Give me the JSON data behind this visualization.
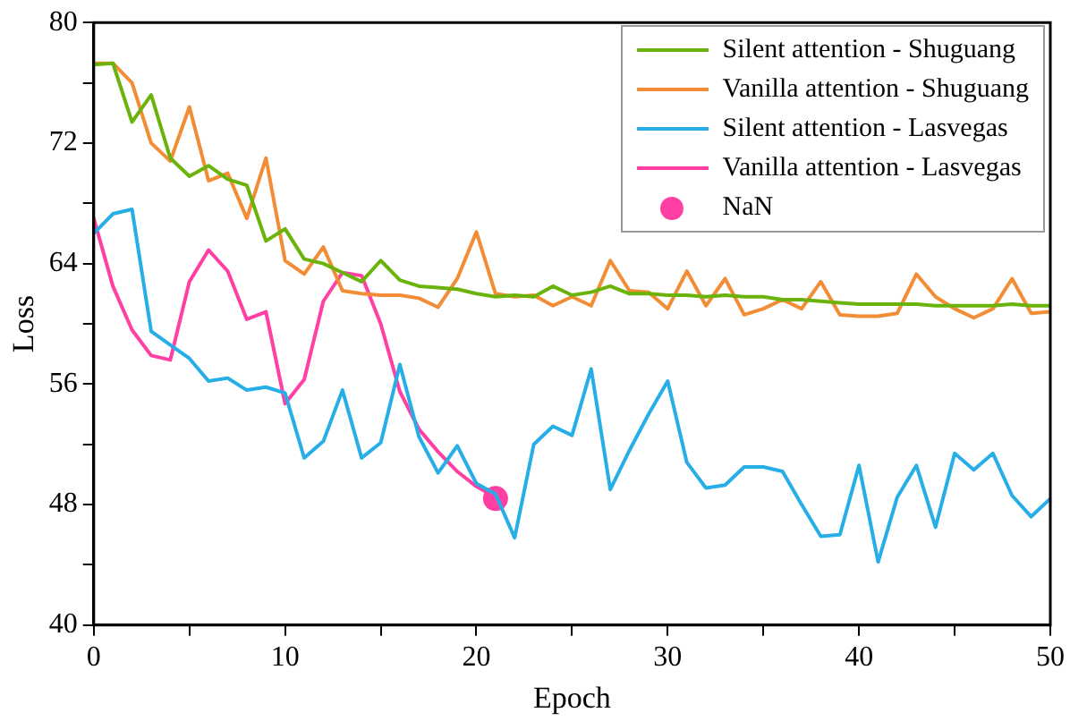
{
  "chart_data": {
    "type": "line",
    "xlabel": "Epoch",
    "ylabel": "Loss",
    "x": [
      0,
      1,
      2,
      3,
      4,
      5,
      6,
      7,
      8,
      9,
      10,
      11,
      12,
      13,
      14,
      15,
      16,
      17,
      18,
      19,
      20,
      21,
      22,
      23,
      24,
      25,
      26,
      27,
      28,
      29,
      30,
      31,
      32,
      33,
      34,
      35,
      36,
      37,
      38,
      39,
      40,
      41,
      42,
      43,
      44,
      45,
      46,
      47,
      48,
      49,
      50
    ],
    "series": [
      {
        "name": "Silent attention - Shuguang",
        "color": "#6ab30a",
        "values": [
          77.2,
          77.3,
          73.4,
          75.2,
          71,
          69.8,
          70.5,
          69.6,
          69.2,
          65.5,
          66.3,
          64.3,
          64,
          63.4,
          62.8,
          64.2,
          62.9,
          62.5,
          62.4,
          62.3,
          62,
          61.8,
          61.9,
          61.8,
          62.5,
          61.9,
          62.1,
          62.5,
          62,
          62,
          61.9,
          61.9,
          61.8,
          61.9,
          61.8,
          61.8,
          61.6,
          61.6,
          61.5,
          61.4,
          61.3,
          61.3,
          61.3,
          61.3,
          61.2,
          61.2,
          61.2,
          61.2,
          61.3,
          61.2,
          61.2
        ]
      },
      {
        "name": "Vanilla attention - Shuguang",
        "color": "#f28c35",
        "values": [
          77.3,
          77.3,
          76,
          72,
          70.8,
          74.4,
          69.5,
          70,
          67,
          71,
          64.2,
          63.3,
          65.1,
          62.2,
          62,
          61.9,
          61.9,
          61.7,
          61.1,
          63,
          66.1,
          62,
          61.8,
          61.9,
          61.2,
          61.8,
          61.2,
          64.2,
          62.2,
          62.1,
          61,
          63.5,
          61.2,
          63,
          60.6,
          61,
          61.6,
          61,
          62.8,
          60.6,
          60.5,
          60.5,
          60.7,
          63.3,
          61.8,
          61,
          60.4,
          61,
          63,
          60.7,
          60.8
        ]
      },
      {
        "name": "Silent attention - Lasvegas",
        "color": "#27aee6",
        "values": [
          66,
          67.3,
          67.6,
          59.5,
          58.6,
          57.7,
          56.2,
          56.4,
          55.6,
          55.8,
          55.4,
          51.1,
          52.2,
          55.6,
          51.1,
          52.1,
          57.3,
          52.5,
          50.1,
          51.9,
          49.4,
          48.7,
          45.8,
          52,
          53.2,
          52.6,
          57,
          49,
          51.6,
          54,
          56.2,
          50.8,
          49.1,
          49.3,
          50.5,
          50.5,
          50.2,
          48,
          45.9,
          46,
          50.6,
          44.2,
          48.5,
          50.6,
          46.5,
          51.4,
          50.3,
          51.4,
          48.6,
          47.2,
          48.4
        ]
      },
      {
        "name": "Vanilla attention - Lasvegas",
        "color": "#ff3fa4",
        "x": [
          0,
          1,
          2,
          3,
          4,
          5,
          6,
          7,
          8,
          9,
          10,
          11,
          12,
          13,
          14,
          15,
          16,
          17,
          18,
          19,
          20,
          21
        ],
        "values": [
          67,
          62.5,
          59.6,
          57.9,
          57.6,
          62.8,
          64.9,
          63.5,
          60.3,
          60.8,
          54.7,
          56.3,
          61.5,
          63.4,
          63.2,
          60,
          55.5,
          53,
          51.5,
          50.2,
          49.2,
          48.5
        ]
      },
      {
        "name": "NaN",
        "type": "scatter",
        "marker": "circle",
        "color": "#ff3fa4",
        "x": [
          21
        ],
        "values": [
          48.4
        ]
      }
    ],
    "xlim": [
      0,
      50
    ],
    "xticks": [
      0,
      {
        "value": 5,
        "label": null
      },
      10,
      {
        "value": 15,
        "label": null
      },
      20,
      {
        "value": 25,
        "label": null
      },
      30,
      {
        "value": 35,
        "label": null
      },
      40,
      {
        "value": 45,
        "label": null
      },
      50
    ],
    "ylim": [
      40,
      80
    ],
    "yticks": [
      40,
      {
        "value": 44,
        "label": null
      },
      48,
      {
        "value": 52,
        "label": null
      },
      56,
      {
        "value": 60,
        "label": null
      },
      64,
      {
        "value": 68,
        "label": null
      },
      72,
      {
        "value": 76,
        "label": null
      },
      80
    ],
    "grid": false,
    "legend": "top right",
    "line_style": "solid"
  }
}
